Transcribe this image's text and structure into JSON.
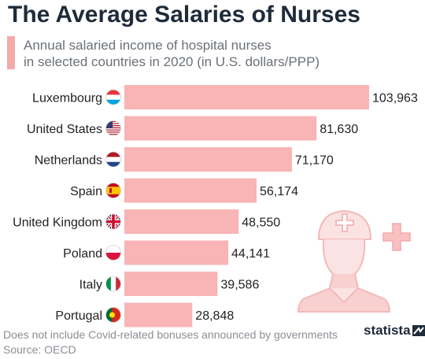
{
  "title": "The Average Salaries of Nurses",
  "subtitle": {
    "line1": "Annual salaried income of hospital nurses",
    "line2": "in selected countries in 2020 (in U.S. dollars/PPP)"
  },
  "footnote": "Does not include Covid-related bonuses announced by governments",
  "source": "Source: OECD",
  "brand": "statista",
  "colors": {
    "bar": "#f9b4b5",
    "accent": "#f4a9aa",
    "title": "#1f2b3a",
    "illustration": "#f6c3c4"
  },
  "chart_data": {
    "type": "bar",
    "orientation": "horizontal",
    "categories": [
      "Luxembourg",
      "United States",
      "Netherlands",
      "Spain",
      "United Kingdom",
      "Poland",
      "Italy",
      "Portugal"
    ],
    "values": [
      103963,
      81630,
      71170,
      56174,
      48550,
      44141,
      39586,
      28848
    ],
    "labels": [
      "103,963",
      "81,630",
      "71,170",
      "56,174",
      "48,550",
      "44,141",
      "39,586",
      "28,848"
    ],
    "flags": [
      "luxembourg-flag-icon",
      "united-states-flag-icon",
      "netherlands-flag-icon",
      "spain-flag-icon",
      "united-kingdom-flag-icon",
      "poland-flag-icon",
      "italy-flag-icon",
      "portugal-flag-icon"
    ],
    "title": "The Average Salaries of Nurses",
    "xlabel": "",
    "ylabel": "",
    "xlim": [
      0,
      103963
    ],
    "grid": false,
    "legend": "none"
  }
}
